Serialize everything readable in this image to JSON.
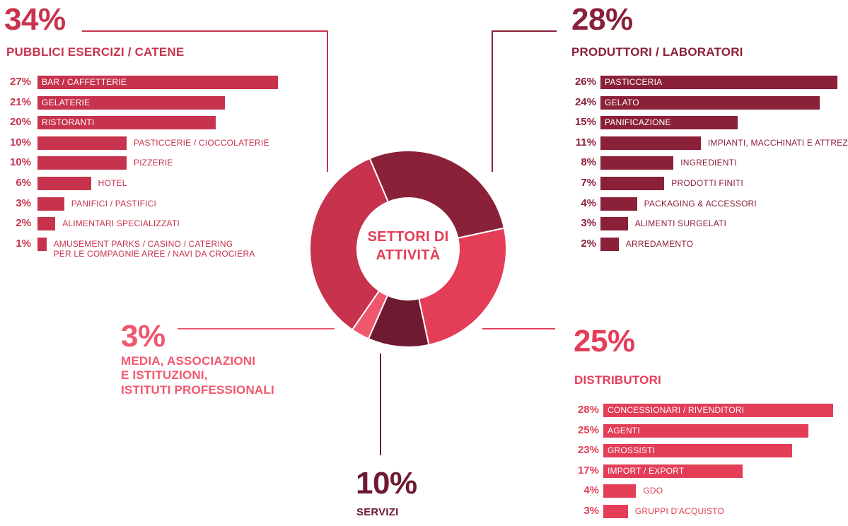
{
  "chart_data": {
    "type": "pie",
    "title": "SETTORI DI ATTIVITÀ",
    "segments": [
      {
        "key": "produttori",
        "value": 28,
        "color": "#8b2139"
      },
      {
        "key": "distributori",
        "value": 25,
        "color": "#e43d57"
      },
      {
        "key": "servizi",
        "value": 10,
        "color": "#6e1a30"
      },
      {
        "key": "media",
        "value": 3,
        "color": "#f05870"
      },
      {
        "key": "pubblici",
        "value": 34,
        "color": "#c7334d"
      }
    ],
    "groups": {
      "pubblici": {
        "percent": "34%",
        "title": "PUBBLICI ESERCIZI / CATENE",
        "color": "#c7334d",
        "items": [
          {
            "pct": "27%",
            "value": 27,
            "label": "BAR / CAFFETTERIE"
          },
          {
            "pct": "21%",
            "value": 21,
            "label": "GELATERIE"
          },
          {
            "pct": "20%",
            "value": 20,
            "label": "RISTORANTI"
          },
          {
            "pct": "10%",
            "value": 10,
            "label": "PASTICCERIE / CIOCCOLATERIE"
          },
          {
            "pct": "10%",
            "value": 10,
            "label": "PIZZERIE"
          },
          {
            "pct": "6%",
            "value": 6,
            "label": "HOTEL"
          },
          {
            "pct": "3%",
            "value": 3,
            "label": "PANIFICI / PASTIFICI"
          },
          {
            "pct": "2%",
            "value": 2,
            "label": "ALIMENTARI SPECIALIZZATI"
          },
          {
            "pct": "1%",
            "value": 1,
            "label": "AMUSEMENT PARKS / CASINO / CATERING",
            "label2": "PER LE COMPAGNIE AREE / NAVI DA CROCIERA"
          }
        ]
      },
      "produttori": {
        "percent": "28%",
        "title": "PRODUTTORI / LABORATORI",
        "color": "#8b2139",
        "items": [
          {
            "pct": "26%",
            "value": 26,
            "label": "PASTICCERIA"
          },
          {
            "pct": "24%",
            "value": 24,
            "label": "GELATO"
          },
          {
            "pct": "15%",
            "value": 15,
            "label": "PANIFICAZIONE"
          },
          {
            "pct": "11%",
            "value": 11,
            "label": "IMPIANTI, MACCHINATI E ATTREZZATURE"
          },
          {
            "pct": "8%",
            "value": 8,
            "label": "INGREDIENTI"
          },
          {
            "pct": "7%",
            "value": 7,
            "label": "PRODOTTI FINITI"
          },
          {
            "pct": "4%",
            "value": 4,
            "label": "PACKAGING & ACCESSORI"
          },
          {
            "pct": "3%",
            "value": 3,
            "label": "ALIMENTI SURGELATI"
          },
          {
            "pct": "2%",
            "value": 2,
            "label": "ARREDAMENTO"
          }
        ]
      },
      "distributori": {
        "percent": "25%",
        "title": "DISTRIBUTORI",
        "color": "#e43d57",
        "items": [
          {
            "pct": "28%",
            "value": 28,
            "label": "CONCESSIONARI / RIVENDITORI"
          },
          {
            "pct": "25%",
            "value": 25,
            "label": "AGENTI"
          },
          {
            "pct": "23%",
            "value": 23,
            "label": "GROSSISTI"
          },
          {
            "pct": "17%",
            "value": 17,
            "label": "IMPORT / EXPORT"
          },
          {
            "pct": "4%",
            "value": 4,
            "label": "GDO"
          },
          {
            "pct": "3%",
            "value": 3,
            "label": "GRUPPI D'ACQUISTO"
          }
        ]
      },
      "media": {
        "percent": "3%",
        "title_lines": [
          "MEDIA, ASSOCIAZIONI",
          "E ISTITUZIONI,",
          "ISTITUTI PROFESSIONALI"
        ],
        "color": "#f05870"
      },
      "servizi": {
        "percent": "10%",
        "title": "SERVIZI",
        "color": "#6e1a30"
      }
    }
  }
}
